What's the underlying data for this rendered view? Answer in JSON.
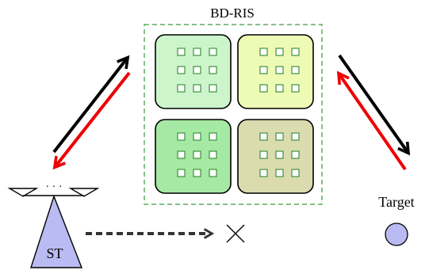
{
  "labels": {
    "ris": "BD-RIS",
    "target": "Target",
    "st": "ST",
    "antenna_dots": "· · ·"
  },
  "colors": {
    "panel_top_left": "#cdf5cc",
    "panel_top_right": "#edfbb4",
    "panel_bottom_left": "#a5e9a4",
    "panel_bottom_right": "#dbdbb0",
    "ris_border": "#3a9a3a",
    "element_stroke": "#2f8a2f",
    "st_fill": "#b9bbf2",
    "target_fill": "#b9bbf2",
    "arrow_black": "#000000",
    "arrow_red": "#ee0000",
    "blocked_link": "#333333"
  },
  "icons": {
    "blocked": "cross-icon"
  }
}
